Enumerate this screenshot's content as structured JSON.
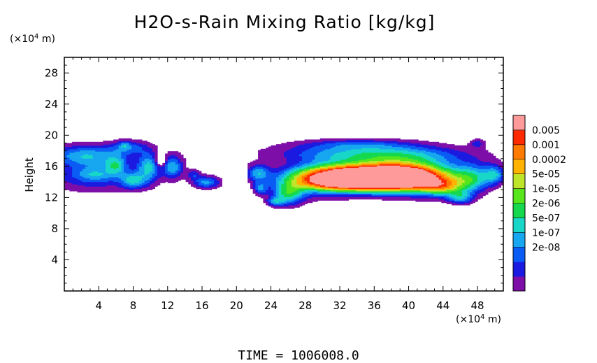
{
  "chart_data": {
    "type": "heatmap",
    "title": "H2O-s-Rain Mixing Ratio [kg/kg]",
    "ylabel": "Height",
    "xunit_prefix": "(×10",
    "xunit_exp": "4",
    "xunit_suffix": " m)",
    "yunit_prefix": "(×10",
    "yunit_exp": "4",
    "yunit_suffix": " m)",
    "xlim": [
      0,
      51
    ],
    "ylim": [
      0,
      30
    ],
    "xticks": [
      4,
      8,
      12,
      16,
      20,
      24,
      28,
      32,
      36,
      40,
      44,
      48
    ],
    "yticks": [
      4,
      8,
      12,
      16,
      20,
      24,
      28
    ],
    "time_label": "TIME = 1006008.0",
    "colorbar": {
      "labels": [
        "0.005",
        "0.001",
        "0.0002",
        "5e-05",
        "1e-05",
        "2e-06",
        "5e-07",
        "1e-07",
        "2e-08"
      ],
      "colors": [
        "#7e0ea8",
        "#1a1ae0",
        "#0a5cf5",
        "#17a6f0",
        "#18d7c9",
        "#15d84e",
        "#57e51c",
        "#bfe52a",
        "#ffb300",
        "#ff7a00",
        "#ff2a00",
        "#ff9a9a"
      ]
    }
  }
}
